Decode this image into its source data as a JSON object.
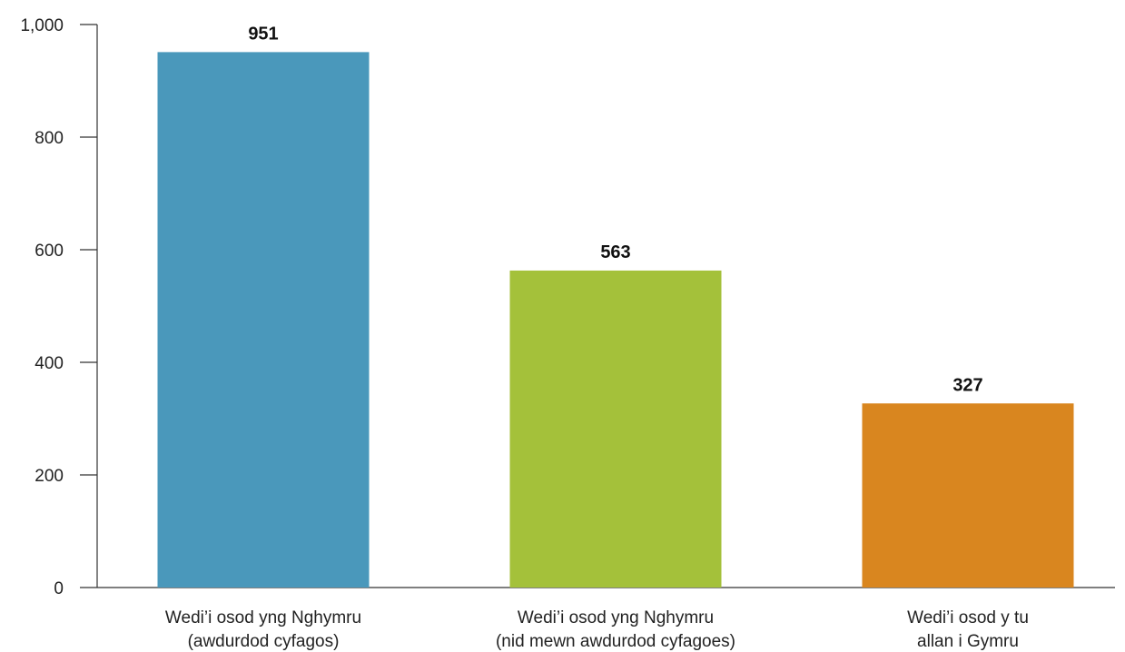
{
  "chart_data": {
    "type": "bar",
    "categories": [
      [
        "Wedi’i osod yng Nghymru",
        "(awdurdod cyfagos)"
      ],
      [
        "Wedi’i osod yng Nghymru",
        "(nid mewn awdurdod cyfagoes)"
      ],
      [
        "Wedi’i osod y tu",
        "allan i Gymru"
      ]
    ],
    "values": [
      951,
      563,
      327
    ],
    "data_labels": [
      "951",
      "563",
      "327"
    ],
    "colors": [
      "#4a98bb",
      "#a4c13a",
      "#d9861f"
    ],
    "ylim": [
      0,
      1000
    ],
    "yticks": [
      0,
      200,
      400,
      600,
      800,
      1000
    ],
    "ytick_labels": [
      "0",
      "200",
      "400",
      "600",
      "800",
      "1,000"
    ],
    "title": "",
    "xlabel": "",
    "ylabel": "",
    "grid": false,
    "legend": "none"
  }
}
